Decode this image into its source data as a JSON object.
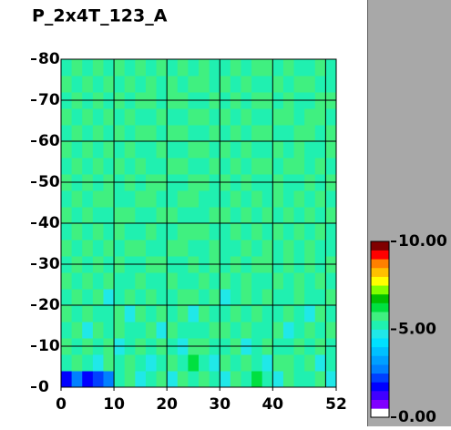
{
  "chart_data": {
    "type": "heatmap",
    "title": "P_2x4T_123_A",
    "xlim": [
      0,
      52
    ],
    "ylim": [
      0,
      80
    ],
    "xticks": [
      0,
      10,
      20,
      30,
      40,
      52
    ],
    "yticks": [
      0,
      10,
      20,
      30,
      40,
      50,
      60,
      70,
      80
    ],
    "xgrid": [
      10,
      20,
      30,
      40,
      50
    ],
    "grid": true,
    "zlim": [
      0,
      10
    ],
    "zticks": [
      {
        "value": 0,
        "label": "0.00"
      },
      {
        "value": 5,
        "label": "5.00"
      },
      {
        "value": 10,
        "label": "10.00"
      }
    ],
    "colormap": [
      "#ffffff",
      "#8000ff",
      "#4000ff",
      "#0000ff",
      "#0040ff",
      "#0080ff",
      "#00a0ff",
      "#00c0ff",
      "#00e0ff",
      "#20e8e8",
      "#20f0b0",
      "#40f080",
      "#00e040",
      "#00c000",
      "#80ff00",
      "#ffff00",
      "#ffc000",
      "#ff8000",
      "#ff0000",
      "#800000"
    ],
    "values": [
      [
        1.5,
        2.5,
        1.5,
        2.0,
        2.5,
        5.1,
        5.6,
        4.9,
        5.3,
        5.8,
        4.7,
        5.6,
        5.1,
        5.9,
        5.3,
        4.8,
        5.6,
        5.2,
        6.0,
        5.4,
        4.9,
        5.7,
        5.3,
        5.1,
        5.8,
        4.9
      ],
      [
        5.3,
        5.8,
        5.1,
        4.9,
        5.6,
        5.2,
        5.9,
        5.4,
        4.8,
        5.1,
        5.7,
        5.3,
        6.0,
        5.2,
        4.9,
        5.6,
        5.1,
        5.8,
        5.3,
        4.7,
        5.5,
        5.9,
        5.2,
        5.6,
        4.9,
        5.4
      ],
      [
        5.8,
        5.2,
        5.6,
        5.3,
        5.9,
        4.8,
        5.4,
        5.7,
        5.1,
        5.6,
        5.2,
        4.9,
        5.5,
        5.8,
        5.3,
        5.1,
        5.9,
        4.9,
        5.4,
        5.7,
        5.2,
        5.1,
        5.8,
        5.3,
        5.6,
        5.2
      ],
      [
        5.1,
        5.7,
        4.9,
        5.8,
        5.2,
        5.6,
        5.1,
        5.3,
        5.9,
        4.9,
        5.8,
        5.4,
        5.1,
        5.3,
        5.7,
        5.9,
        5.2,
        5.6,
        5.1,
        5.3,
        5.8,
        4.9,
        5.4,
        5.7,
        5.1,
        5.8
      ],
      [
        5.6,
        5.3,
        5.9,
        5.1,
        5.4,
        5.8,
        4.9,
        5.6,
        5.2,
        5.7,
        5.3,
        5.8,
        4.9,
        5.6,
        5.1,
        5.4,
        5.7,
        5.3,
        5.9,
        5.2,
        5.1,
        5.6,
        5.3,
        4.8,
        5.9,
        5.3
      ],
      [
        5.2,
        5.9,
        5.4,
        5.6,
        4.9,
        5.3,
        5.7,
        5.1,
        5.8,
        5.4,
        5.1,
        5.6,
        5.7,
        5.2,
        5.9,
        4.8,
        5.3,
        5.6,
        5.2,
        5.8,
        5.4,
        5.1,
        5.7,
        5.4,
        5.2,
        5.6
      ],
      [
        5.7,
        5.1,
        5.8,
        5.3,
        5.6,
        5.1,
        5.4,
        5.9,
        5.2,
        5.1,
        5.8,
        5.3,
        5.4,
        5.9,
        5.2,
        5.6,
        5.1,
        5.8,
        5.4,
        5.1,
        5.7,
        5.3,
        5.9,
        5.2,
        5.6,
        5.1
      ],
      [
        5.3,
        5.6,
        5.2,
        5.9,
        5.1,
        5.7,
        5.3,
        5.2,
        5.6,
        5.9,
        5.3,
        5.1,
        5.8,
        5.4,
        5.6,
        5.3,
        5.9,
        5.1,
        5.7,
        5.6,
        5.2,
        5.8,
        5.1,
        5.6,
        5.3,
        5.9
      ],
      [
        5.9,
        5.4,
        5.7,
        5.1,
        5.8,
        5.3,
        5.6,
        5.8,
        5.1,
        5.4,
        5.7,
        5.9,
        5.2,
        5.1,
        5.8,
        5.4,
        5.3,
        5.7,
        5.2,
        5.9,
        5.3,
        5.6,
        5.4,
        5.8,
        5.1,
        5.4
      ],
      [
        5.2,
        5.8,
        5.3,
        5.6,
        5.4,
        5.9,
        5.1,
        5.4,
        5.7,
        5.3,
        5.2,
        5.6,
        5.9,
        5.7,
        5.3,
        5.1,
        5.8,
        5.4,
        5.6,
        5.2,
        5.8,
        5.1,
        5.7,
        5.3,
        5.9,
        5.2
      ],
      [
        5.6,
        5.1,
        5.9,
        5.4,
        5.2,
        5.6,
        5.8,
        5.3,
        5.1,
        5.8,
        5.6,
        5.4,
        5.1,
        5.3,
        5.9,
        5.7,
        5.2,
        5.6,
        5.3,
        5.8,
        5.1,
        5.9,
        5.2,
        5.6,
        5.4,
        5.7
      ],
      [
        5.4,
        5.7,
        5.2,
        5.8,
        5.6,
        5.1,
        5.3,
        5.9,
        5.6,
        5.2,
        5.4,
        5.8,
        5.6,
        5.2,
        5.4,
        5.3,
        5.8,
        5.1,
        5.9,
        5.4,
        5.6,
        5.3,
        5.8,
        5.1,
        5.7,
        5.3
      ],
      [
        5.8,
        5.3,
        5.6,
        5.1,
        5.9,
        5.4,
        5.7,
        5.2,
        5.8,
        5.6,
        5.1,
        5.3,
        5.7,
        5.9,
        5.1,
        5.6,
        5.4,
        5.8,
        5.2,
        5.3,
        5.7,
        5.4,
        5.1,
        5.9,
        5.3,
        5.6
      ],
      [
        5.1,
        5.9,
        5.4,
        5.7,
        5.3,
        5.8,
        5.2,
        5.6,
        5.3,
        5.1,
        5.9,
        5.6,
        5.2,
        5.4,
        5.8,
        5.1,
        5.7,
        5.3,
        5.6,
        5.9,
        5.2,
        5.8,
        5.6,
        5.3,
        5.8,
        5.1
      ],
      [
        5.7,
        5.4,
        5.8,
        5.2,
        5.6,
        5.3,
        5.9,
        5.1,
        5.4,
        5.8,
        5.3,
        5.2,
        5.8,
        5.6,
        5.3,
        5.9,
        5.1,
        5.6,
        5.4,
        5.1,
        5.8,
        5.3,
        5.7,
        5.2,
        5.4,
        5.9
      ],
      [
        5.3,
        5.6,
        5.1,
        5.9,
        5.4,
        5.7,
        5.1,
        5.8,
        5.6,
        5.3,
        5.7,
        5.9,
        5.1,
        5.3,
        5.6,
        5.4,
        5.9,
        5.2,
        5.8,
        5.6,
        5.4,
        5.1,
        5.9,
        5.6,
        5.1,
        5.7
      ],
      [
        5.9,
        5.2,
        5.7,
        5.3,
        5.8,
        5.1,
        5.6,
        5.4,
        5.2,
        5.9,
        5.1,
        5.4,
        5.6,
        5.8,
        5.2,
        5.7,
        5.3,
        5.9,
        5.1,
        5.4,
        5.7,
        5.6,
        5.2,
        5.8,
        5.6,
        5.3
      ],
      [
        5.4,
        5.8,
        5.3,
        5.6,
        5.1,
        5.9,
        5.4,
        5.7,
        5.9,
        5.2,
        5.6,
        5.8,
        5.3,
        5.1,
        5.9,
        5.2,
        5.6,
        5.4,
        5.7,
        5.8,
        5.1,
        5.9,
        5.4,
        5.3,
        5.7,
        5.6
      ],
      [
        5.6,
        5.3,
        5.9,
        5.2,
        5.7,
        5.4,
        5.8,
        5.2,
        5.6,
        5.4,
        5.8,
        5.1,
        5.7,
        5.6,
        5.4,
        5.8,
        5.1,
        5.7,
        5.3,
        5.2,
        5.9,
        5.4,
        5.6,
        5.8,
        5.2,
        5.4
      ],
      [
        5.2,
        5.7,
        5.4,
        5.8,
        5.3,
        5.6,
        5.1,
        5.9,
        5.3,
        5.7,
        5.2,
        5.6,
        5.4,
        5.9,
        5.1,
        5.3,
        5.8,
        5.2,
        5.6,
        5.9,
        5.3,
        5.7,
        5.1,
        5.4,
        5.8,
        5.3
      ]
    ]
  }
}
